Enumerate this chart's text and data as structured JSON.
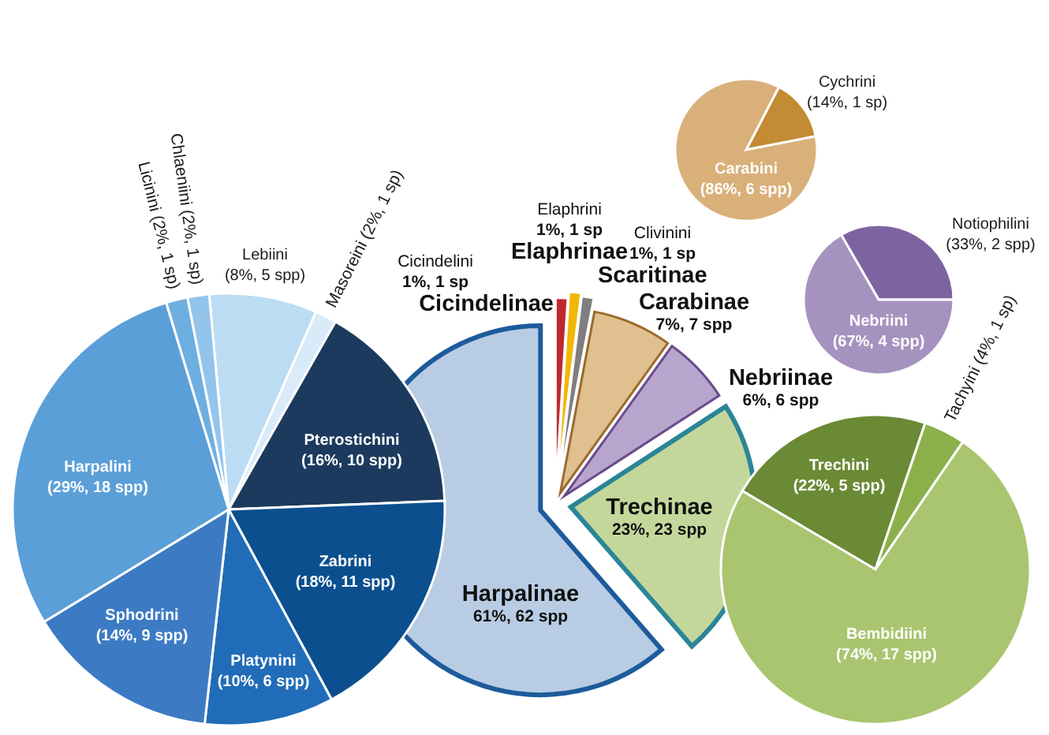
{
  "chart_data": [
    {
      "type": "pie",
      "categories": [
        "Cicindelinae",
        "Elaphrinae",
        "Scaritinae",
        "Carabinae",
        "Nebriinae",
        "Trechinae",
        "Harpalinae"
      ],
      "values": [
        1,
        1,
        1,
        7,
        6,
        23,
        62
      ],
      "colors": [
        "#c0282d",
        "#f2b705",
        "#7f7f7f",
        "#dfc08e",
        "#b8a5cd",
        "#c4d79b",
        "#b8cce4"
      ],
      "value_labels": [
        "1%, 1 sp",
        "1%, 1 sp",
        "1%, 1 sp",
        "7%, 7 spp",
        "6%, 6 spp",
        "23%, 23 spp",
        "61%, 62 spp"
      ],
      "annotations": [
        "Cicindelini",
        "Elaphrini",
        "Clivinini"
      ]
    },
    {
      "type": "pie",
      "categories": [
        "Lebiini",
        "Masoreini",
        "Pterostichini",
        "Zabrini",
        "Platynini",
        "Sphodrini",
        "Harpalini",
        "Licinini",
        "Chlaeniini"
      ],
      "values": [
        5,
        1,
        10,
        11,
        6,
        9,
        18,
        1,
        1
      ],
      "colors": [
        "#bcdcf4",
        "#d9eaf8",
        "#1b3a5e",
        "#0b4f8f",
        "#216cb8",
        "#3c7bc3",
        "#5b9fd8",
        "#6eafe2",
        "#93c4ec"
      ],
      "value_labels": [
        "(8%, 5 spp)",
        "(2%, 1 sp)",
        "(16%, 10 spp)",
        "(18%, 11 spp)",
        "(10%, 6 spp)",
        "(14%, 9 spp)",
        "(29%, 18 spp)",
        "(2%, 1 sp)",
        "(2%, 1 sp)"
      ]
    },
    {
      "type": "pie",
      "categories": [
        "Cychrini",
        "Carabini"
      ],
      "values": [
        1,
        6
      ],
      "colors": [
        "#c48b35",
        "#d9b07a"
      ],
      "value_labels": [
        "(14%, 1 sp)",
        "(86%, 6 spp)"
      ]
    },
    {
      "type": "pie",
      "categories": [
        "Notiophilini",
        "Nebriini"
      ],
      "values": [
        2,
        4
      ],
      "colors": [
        "#7e63a1",
        "#a692bf"
      ],
      "value_labels": [
        "(33%, 2 spp)",
        "(67%, 4 spp)"
      ]
    },
    {
      "type": "pie",
      "categories": [
        "Trechini",
        "Tachyini",
        "Bembidiini"
      ],
      "values": [
        5,
        1,
        17
      ],
      "colors": [
        "#6b8a35",
        "#8bb04a",
        "#a9c56f"
      ],
      "value_labels": [
        "(22%, 5 spp)",
        "(4%, 1 sp)",
        "(74%, 17 spp)"
      ]
    }
  ]
}
